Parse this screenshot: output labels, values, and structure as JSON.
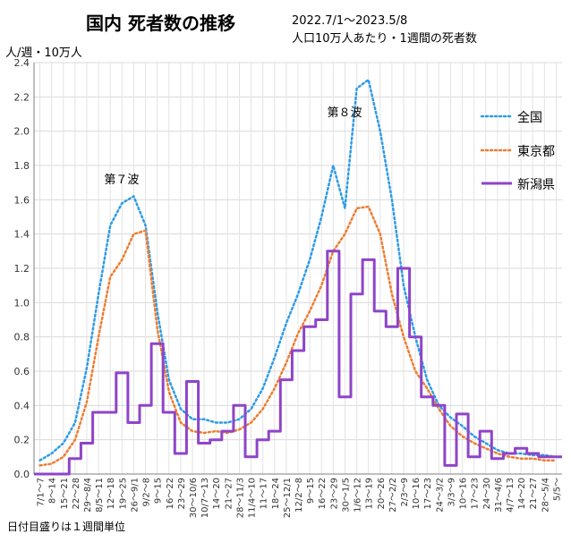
{
  "header": {
    "title": "国内 死者数の推移",
    "period": "2022.7/1～2023.5/8",
    "subtitle": "人口10万人あたり・1週間の死者数",
    "y_unit": "人/週・10万人",
    "note": "日付目盛りは１週間単位"
  },
  "chart_data": {
    "type": "line",
    "title": "国内 死者数の推移",
    "xlabel": "",
    "ylabel": "人/週・10万人",
    "ylim": [
      0,
      2.4
    ],
    "yticks": [
      "0.0",
      "0.2",
      "0.4",
      "0.6",
      "0.8",
      "1.0",
      "1.2",
      "1.4",
      "1.6",
      "1.8",
      "2.0",
      "2.2",
      "2.4"
    ],
    "grid": true,
    "legend_position": "right",
    "categories": [
      "7/1～7",
      "8～14",
      "15～21",
      "22～28",
      "29～8/4",
      "8/5～11",
      "12～18",
      "19～25",
      "26～9/1",
      "9/2～8",
      "9～15",
      "16～22",
      "23～29",
      "30～10/6",
      "10/7～13",
      "14～20",
      "21～27",
      "28～11/3",
      "11/4～10",
      "11～17",
      "18～24",
      "25～12/1",
      "12/2～8",
      "9～15",
      "16～22",
      "23～29",
      "30～1/5",
      "1/6～12",
      "13～19",
      "20～26",
      "27～2/2",
      "2/3～9",
      "10～16",
      "17～23",
      "24～3/2",
      "3/3～9",
      "10～16",
      "17～23",
      "24～30",
      "31～4/6",
      "4/7～13",
      "14～20",
      "21～27",
      "28～5/4",
      "5/5～"
    ],
    "annotations": [
      {
        "text": "第７波",
        "x": "19～25",
        "y": 1.68
      },
      {
        "text": "第８波",
        "x": "30～1/5",
        "y": 2.07
      }
    ],
    "series": [
      {
        "name": "全国",
        "color": "#2e9be5",
        "style": "dotted",
        "values": [
          0.08,
          0.12,
          0.18,
          0.3,
          0.62,
          1.05,
          1.45,
          1.58,
          1.62,
          1.45,
          0.95,
          0.55,
          0.38,
          0.32,
          0.32,
          0.3,
          0.3,
          0.32,
          0.38,
          0.5,
          0.68,
          0.88,
          1.05,
          1.25,
          1.5,
          1.8,
          1.55,
          2.25,
          2.3,
          2.0,
          1.6,
          1.1,
          0.8,
          0.55,
          0.4,
          0.33,
          0.28,
          0.22,
          0.18,
          0.14,
          0.12,
          0.12,
          0.11,
          0.11,
          0.1
        ]
      },
      {
        "name": "東京都",
        "color": "#ed7d31",
        "style": "dotted",
        "values": [
          0.05,
          0.06,
          0.1,
          0.2,
          0.42,
          0.8,
          1.15,
          1.25,
          1.4,
          1.42,
          0.85,
          0.48,
          0.3,
          0.25,
          0.24,
          0.25,
          0.24,
          0.26,
          0.3,
          0.38,
          0.5,
          0.65,
          0.82,
          0.95,
          1.1,
          1.3,
          1.4,
          1.55,
          1.56,
          1.4,
          1.05,
          0.8,
          0.6,
          0.5,
          0.38,
          0.28,
          0.22,
          0.18,
          0.15,
          0.12,
          0.1,
          0.09,
          0.09,
          0.08,
          0.08
        ]
      },
      {
        "name": "新潟県",
        "color": "#8e44c9",
        "style": "solid",
        "values": [
          0.0,
          0.0,
          0.0,
          0.09,
          0.18,
          0.36,
          0.36,
          0.59,
          0.3,
          0.4,
          0.76,
          0.36,
          0.12,
          0.54,
          0.18,
          0.2,
          0.25,
          0.4,
          0.1,
          0.2,
          0.25,
          0.55,
          0.72,
          0.86,
          0.9,
          1.3,
          0.45,
          1.05,
          1.25,
          0.95,
          0.86,
          1.2,
          0.8,
          0.45,
          0.4,
          0.05,
          0.35,
          0.1,
          0.25,
          0.09,
          0.12,
          0.15,
          0.12,
          0.1,
          0.1
        ]
      }
    ]
  }
}
